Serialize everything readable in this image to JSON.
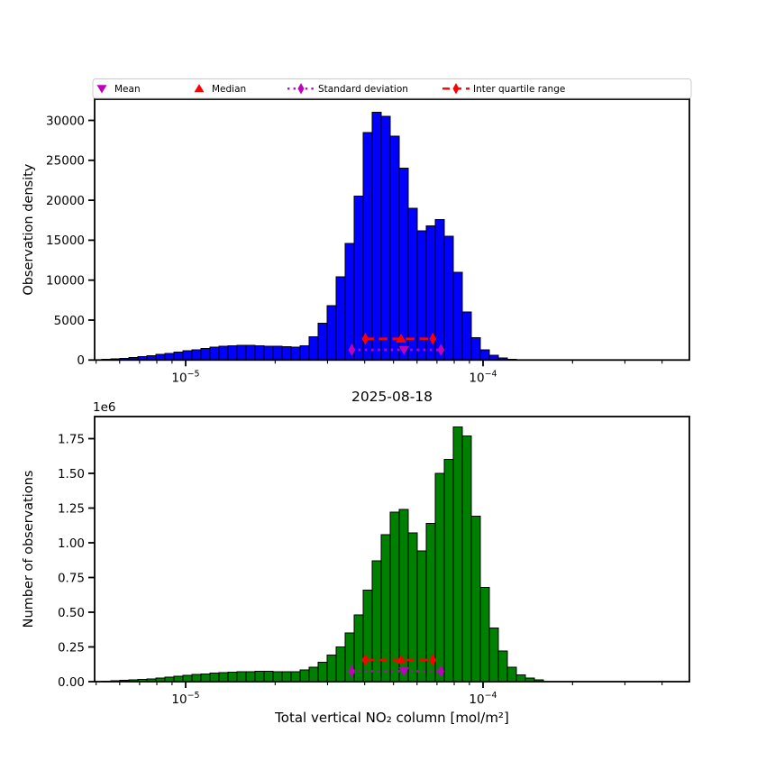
{
  "title": "2025-08-18",
  "legend": {
    "items": [
      {
        "label": "Mean",
        "marker": "triangle-down",
        "color": "#bf00bf",
        "linestyle": "none"
      },
      {
        "label": "Median",
        "marker": "triangle-up",
        "color": "#ff0000",
        "linestyle": "none"
      },
      {
        "label": "Standard deviation",
        "marker": "diamond",
        "color": "#bf00bf",
        "linestyle": "dotted"
      },
      {
        "label": "Inter quartile range",
        "marker": "diamond",
        "color": "#ff0000",
        "linestyle": "dashed"
      }
    ]
  },
  "chart_data": [
    {
      "type": "bar",
      "subtype": "histogram",
      "panel": "top",
      "ylabel": "Observation density",
      "bar_color": "#0000ff",
      "bar_edge_color": "#000000",
      "x_scale": "log",
      "xlim": [
        4.9e-06,
        0.0005
      ],
      "ylim": [
        0,
        32650
      ],
      "y_ticks": {
        "values": [
          0,
          5000,
          10000,
          15000,
          20000,
          25000,
          30000
        ],
        "labels": [
          "0",
          "5000",
          "10000",
          "15000",
          "20000",
          "25000",
          "30000"
        ]
      },
      "x_ticks": [
        {
          "base": "10",
          "exponent": "−5",
          "value": 1e-05
        },
        {
          "base": "10",
          "exponent": "−4",
          "value": 0.0001
        }
      ],
      "bin_edges": [
        5.226e-06,
        5.604e-06,
        6.009e-06,
        6.443e-06,
        6.909e-06,
        7.408e-06,
        7.943e-06,
        8.517e-06,
        9.133e-06,
        9.793e-06,
        1.05e-05,
        1.126e-05,
        1.207e-05,
        1.294e-05,
        1.388e-05,
        1.488e-05,
        1.596e-05,
        1.711e-05,
        1.835e-05,
        1.968e-05,
        2.11e-05,
        2.262e-05,
        2.426e-05,
        2.601e-05,
        2.789e-05,
        2.991e-05,
        3.207e-05,
        3.439e-05,
        3.687e-05,
        3.954e-05,
        4.239e-05,
        4.546e-05,
        4.874e-05,
        5.227e-05,
        5.604e-05,
        6.009e-05,
        6.443e-05,
        6.909e-05,
        7.409e-05,
        7.944e-05,
        8.518e-05,
        9.134e-05,
        9.794e-05,
        0.000105,
        0.0001126,
        0.0001207,
        0.0001295
      ],
      "counts": [
        100,
        150,
        220,
        300,
        420,
        560,
        700,
        850,
        1000,
        1150,
        1300,
        1450,
        1600,
        1720,
        1800,
        1850,
        1840,
        1800,
        1750,
        1700,
        1650,
        1620,
        1800,
        2900,
        4600,
        6800,
        10400,
        14600,
        20500,
        28500,
        31000,
        30500,
        28000,
        24000,
        19000,
        16200,
        16800,
        17600,
        15500,
        11000,
        6000,
        2800,
        1300,
        600,
        250,
        100
      ],
      "stats": {
        "mean": 5.42e-05,
        "median": 5.3e-05,
        "std_range": [
          3.62e-05,
          7.22e-05
        ],
        "iqr_range": [
          4.02e-05,
          6.78e-05
        ],
        "iqr_line_value": 2660,
        "std_line_value": 1280
      }
    },
    {
      "type": "bar",
      "subtype": "histogram",
      "panel": "bottom",
      "ylabel": "Number of observations",
      "xlabel": "Total vertical NO₂ column [mol/m²]",
      "offset_label": "1e6",
      "bar_color": "#008000",
      "bar_edge_color": "#000000",
      "x_scale": "log",
      "xlim": [
        4.9e-06,
        0.0005
      ],
      "ylim": [
        0,
        1909000
      ],
      "y_ticks": {
        "values": [
          0,
          250000,
          500000,
          750000,
          1000000,
          1250000,
          1500000,
          1750000
        ],
        "labels": [
          "0.00",
          "0.25",
          "0.50",
          "0.75",
          "1.00",
          "1.25",
          "1.50",
          "1.75"
        ]
      },
      "x_ticks": [
        {
          "base": "10",
          "exponent": "−5",
          "value": 1e-05
        },
        {
          "base": "10",
          "exponent": "−4",
          "value": 0.0001
        }
      ],
      "bin_edges": [
        5.226e-06,
        5.604e-06,
        6.009e-06,
        6.443e-06,
        6.909e-06,
        7.408e-06,
        7.943e-06,
        8.517e-06,
        9.133e-06,
        9.793e-06,
        1.05e-05,
        1.126e-05,
        1.207e-05,
        1.294e-05,
        1.388e-05,
        1.488e-05,
        1.596e-05,
        1.711e-05,
        1.835e-05,
        1.968e-05,
        2.11e-05,
        2.262e-05,
        2.426e-05,
        2.601e-05,
        2.789e-05,
        2.991e-05,
        3.207e-05,
        3.439e-05,
        3.687e-05,
        3.954e-05,
        4.239e-05,
        4.546e-05,
        4.874e-05,
        5.227e-05,
        5.604e-05,
        6.009e-05,
        6.443e-05,
        6.909e-05,
        7.409e-05,
        7.944e-05,
        8.518e-05,
        9.134e-05,
        9.794e-05,
        0.000105,
        0.0001126,
        0.0001207,
        0.0001295,
        0.0001388,
        0.0001489,
        0.0001596
      ],
      "counts": [
        4000,
        6000,
        9000,
        12000,
        16000,
        21000,
        27000,
        33000,
        39000,
        45000,
        51000,
        56000,
        61000,
        65000,
        68000,
        71000,
        73000,
        74000,
        74000,
        73000,
        72000,
        73000,
        85000,
        105000,
        140000,
        190000,
        250000,
        350000,
        480000,
        660000,
        870000,
        1060000,
        1220000,
        1240000,
        1070000,
        940000,
        1140000,
        1500000,
        1600000,
        1835000,
        1770000,
        1190000,
        680000,
        385000,
        220000,
        104000,
        50000,
        26000,
        12000
      ],
      "stats": {
        "mean": 5.42e-05,
        "median": 5.3e-05,
        "std_range": [
          3.62e-05,
          7.22e-05
        ],
        "iqr_range": [
          4.02e-05,
          6.78e-05
        ],
        "iqr_line_value": 156000,
        "std_line_value": 75000
      }
    }
  ]
}
